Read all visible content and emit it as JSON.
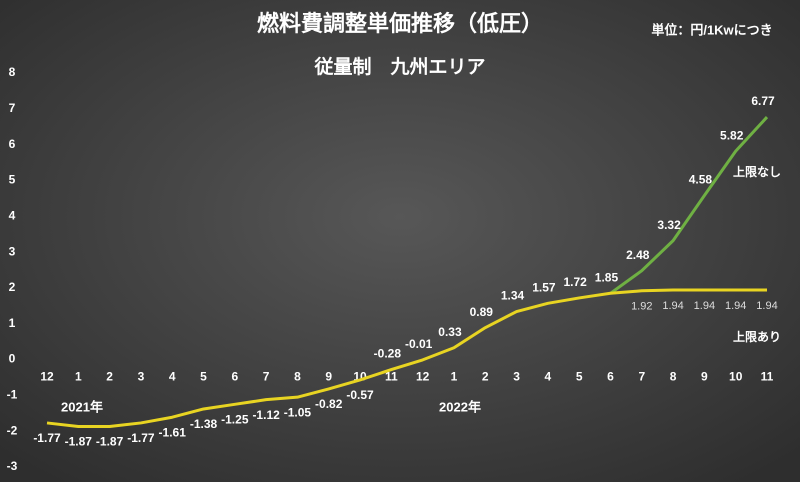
{
  "chart_data": {
    "type": "line",
    "title": "燃料費調整単価推移（低圧）",
    "subtitle": "従量制　九州エリア",
    "unit_note": "単位：円/1Kwにつき",
    "annotations": [
      "2021年",
      "2022年"
    ],
    "categories": [
      "12",
      "1",
      "2",
      "3",
      "4",
      "5",
      "6",
      "7",
      "8",
      "9",
      "10",
      "11",
      "12",
      "1",
      "2",
      "3",
      "4",
      "5",
      "6",
      "7",
      "8",
      "9",
      "10",
      "11"
    ],
    "series": [
      {
        "name": "上限あり",
        "color": "#e8d422",
        "values": [
          -1.77,
          -1.87,
          -1.87,
          -1.77,
          -1.61,
          -1.38,
          -1.25,
          -1.12,
          -1.05,
          -0.82,
          -0.57,
          -0.28,
          -0.01,
          0.33,
          0.89,
          1.34,
          1.57,
          1.72,
          1.85,
          1.92,
          1.94,
          1.94,
          1.94,
          1.94
        ]
      },
      {
        "name": "上限なし",
        "color": "#6fb043",
        "values": [
          null,
          null,
          null,
          null,
          null,
          null,
          null,
          null,
          null,
          null,
          null,
          null,
          null,
          null,
          null,
          null,
          null,
          null,
          1.85,
          2.48,
          3.32,
          4.58,
          5.82,
          6.77
        ]
      }
    ],
    "ylim": [
      -3,
      8
    ],
    "yticks": [
      -3,
      -2,
      -1,
      0,
      1,
      2,
      3,
      4,
      5,
      6,
      7,
      8
    ],
    "grid": false
  }
}
